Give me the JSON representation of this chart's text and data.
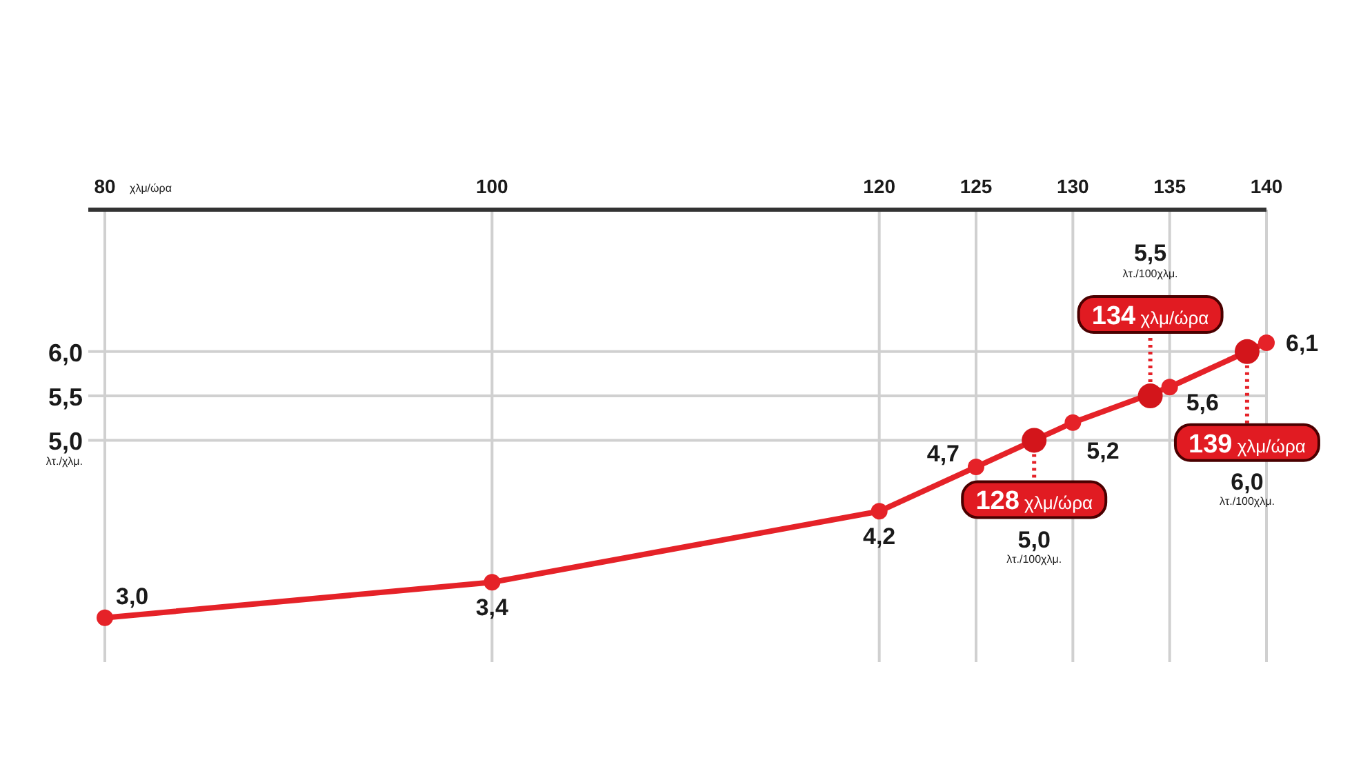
{
  "chart_data": {
    "type": "line",
    "xlabel": "χλμ/ώρα",
    "ylabel": "λτ./χλμ.",
    "x": [
      80,
      100,
      120,
      125,
      130,
      135,
      140
    ],
    "xlim": [
      80,
      140
    ],
    "xticks": [
      80,
      100,
      120,
      125,
      130,
      135,
      140
    ],
    "ylim": [
      2.5,
      7.6
    ],
    "yticks": [
      {
        "value": 5.0,
        "label": "5,0"
      },
      {
        "value": 5.5,
        "label": "5,5"
      },
      {
        "value": 6.0,
        "label": "6,0"
      }
    ],
    "grid": true,
    "marker": "circle",
    "line_style": "solid",
    "series": [
      {
        "color": "#e52228",
        "values": [
          3.0,
          3.4,
          4.2,
          4.7,
          5.2,
          5.6,
          6.1
        ],
        "value_labels": [
          "3,0",
          "3,4",
          "4,2",
          "4,7",
          "5,2",
          "5,6",
          "6,1"
        ]
      },
      {
        "type": "scatter",
        "color": "#d3151b",
        "x": [
          128,
          134,
          139
        ],
        "values": [
          5.0,
          5.5,
          6.0
        ]
      }
    ],
    "annotations": [
      {
        "text": "128 χλμ/ώρα",
        "x": 128,
        "y": 5.0
      },
      {
        "text": "134 χλμ/ώρα",
        "x": 134,
        "y": 5.5
      },
      {
        "text": "139 χλμ/ώρα",
        "x": 139,
        "y": 6.0
      },
      "5,0",
      "5,5",
      "6,0",
      "λτ./100χλμ.",
      "λτ./100χλμ.",
      "λτ./100χλμ."
    ]
  }
}
